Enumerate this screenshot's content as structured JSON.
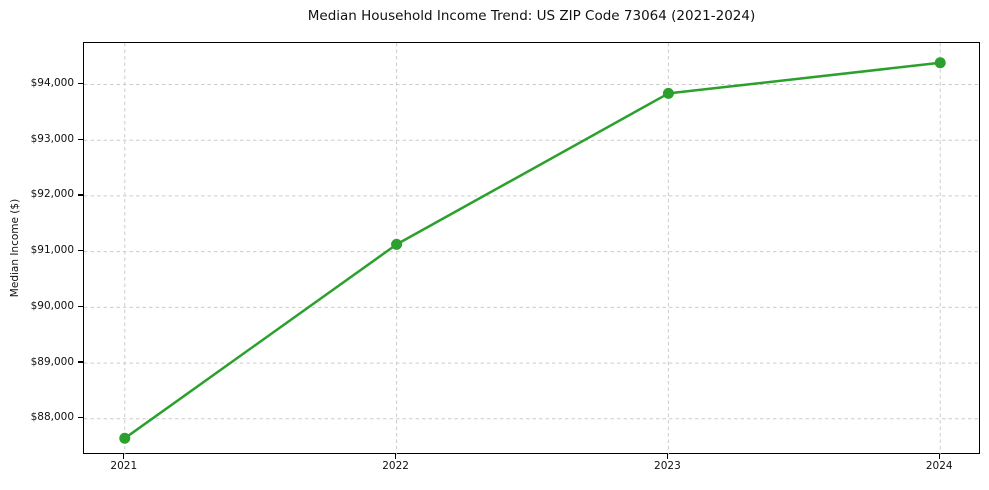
{
  "chart_data": {
    "type": "line",
    "title": "Median Household Income Trend: US ZIP Code 73064 (2021-2024)",
    "xlabel": "",
    "ylabel": "Median Income ($)",
    "x": [
      2021,
      2022,
      2023,
      2024
    ],
    "series": [
      {
        "name": "Median Household Income",
        "values": [
          87650,
          91130,
          93840,
          94390
        ]
      }
    ],
    "xticks": [
      {
        "value": 2021,
        "label": "2021"
      },
      {
        "value": 2022,
        "label": "2022"
      },
      {
        "value": 2023,
        "label": "2023"
      },
      {
        "value": 2024,
        "label": "2024"
      }
    ],
    "yticks": [
      {
        "value": 88000,
        "label": "$88,000"
      },
      {
        "value": 89000,
        "label": "$89,000"
      },
      {
        "value": 90000,
        "label": "$90,000"
      },
      {
        "value": 91000,
        "label": "$91,000"
      },
      {
        "value": 92000,
        "label": "$92,000"
      },
      {
        "value": 93000,
        "label": "$93,000"
      },
      {
        "value": 94000,
        "label": "$94,000"
      }
    ],
    "xlim": [
      2020.85,
      2024.15
    ],
    "ylim": [
      87350,
      94745
    ],
    "grid": true,
    "legend": "none",
    "colors": {
      "line": "#2ca02c",
      "marker": "#2ca02c",
      "grid": "#cccccc",
      "spine": "#000000",
      "text": "#111111",
      "background": "#ffffff"
    }
  }
}
